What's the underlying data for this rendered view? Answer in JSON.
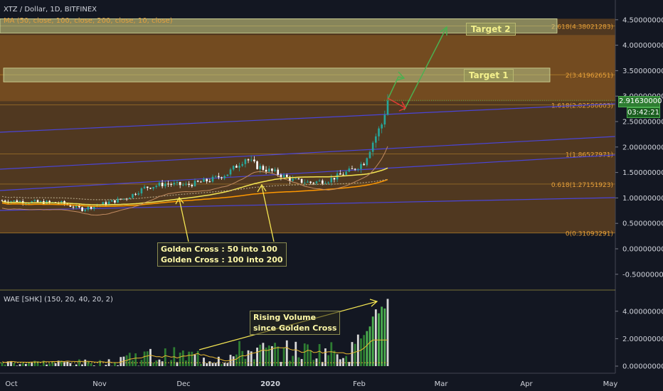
{
  "header": {
    "symbol_line": "XTZ / Dollar, 1D, BITFINEX",
    "ma_line": "MA (50, close, 100, close, 200, close, 10, close)",
    "wae_line": "WAE [SHK] (150, 20, 40, 20, 2)"
  },
  "price_tag": "2.91630000",
  "timer_tag": "03:42:21",
  "annotations": {
    "golden_cross_1": "Golden Cross : 50 into 100",
    "golden_cross_2": "Golden Cross : 100 into 200",
    "rising_volume_1": "Rising Volume",
    "rising_volume_2": "since Golden Cross",
    "target1": "Target 1",
    "target2": "Target 2"
  },
  "colors": {
    "background": "#131722",
    "up_candle": "#26a69a",
    "down_candle": "#ffffff",
    "fib_zone": "#f0901e",
    "target_box": "#b5c48a",
    "ma_fast": "#f5e653",
    "ma_slow": "#ff9800",
    "ma_dotted": "#b0a080",
    "trendline": "#4a45d8",
    "arrow_up": "#4caf50",
    "arrow_down": "#e53935",
    "volume_up": "#2e7d32",
    "volume_strong": "#4caf50",
    "volume_down": "#d8d8d8"
  },
  "chart_data": [
    {
      "type": "candlestick",
      "title": "XTZ / Dollar, 1D, BITFINEX",
      "x_ticks": [
        "Oct",
        "Nov",
        "Dec",
        "2020",
        "Feb",
        "Mar",
        "Apr",
        "May"
      ],
      "y_ticks": [
        "4.50000000",
        "4.00000000",
        "3.50000000",
        "3.00000000",
        "2.50000000",
        "2.00000000",
        "1.50000000",
        "1.00000000",
        "0.50000000",
        "0.00000000",
        "-0.50000000"
      ],
      "ylim": [
        -0.7,
        4.85
      ],
      "fib_levels": [
        {
          "label": "2.618(4.38021283)",
          "value": 4.38021283
        },
        {
          "label": "2(3.41962651)",
          "value": 3.41962651
        },
        {
          "label": "1.618(2.82586603)",
          "value": 2.82586603
        },
        {
          "label": "1(1.86527971)",
          "value": 1.86527971
        },
        {
          "label": "0.618(1.27151923)",
          "value": 1.27151923
        },
        {
          "label": "0(0.31093291)",
          "value": 0.31093291
        }
      ],
      "target_zones": [
        {
          "name": "Target 1",
          "low": 3.28,
          "high": 3.55
        },
        {
          "name": "Target 2",
          "low": 4.24,
          "high": 4.52
        }
      ],
      "close_series_by_month": [
        {
          "month": "Oct",
          "close": 0.9
        },
        {
          "month": "Nov",
          "close": 1.05
        },
        {
          "month": "Dec",
          "close": 1.5
        },
        {
          "month": "2020",
          "close": 1.25
        },
        {
          "month": "Feb",
          "close": 2.9
        }
      ],
      "last_price": 2.9163,
      "moving_averages": [
        "MA 50",
        "MA 100",
        "MA 200"
      ],
      "grid": false
    },
    {
      "type": "bar",
      "title": "WAE [SHK] (150, 20, 40, 20, 2)",
      "y_ticks": [
        "4.00000000",
        "2.00000000",
        "0.00000000"
      ],
      "ylim": [
        -0.3,
        5.0
      ],
      "trend": "rising volume since golden cross",
      "peak_value": 4.9
    }
  ]
}
